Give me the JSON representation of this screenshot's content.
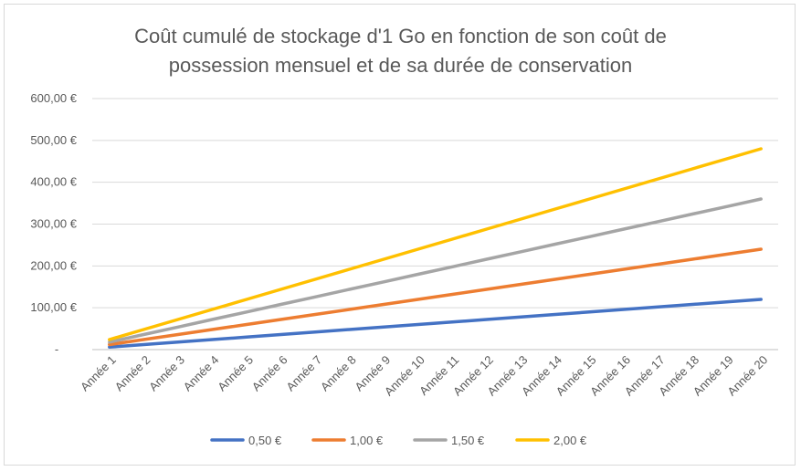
{
  "chart_data": {
    "type": "line",
    "title_line1": "Coût cumulé de stockage d'1 Go en fonction de son coût de",
    "title_line2": "possession mensuel et de sa durée de conservation",
    "categories": [
      "Année 1",
      "Année 2",
      "Année 3",
      "Année 4",
      "Année 5",
      "Année 6",
      "Année 7",
      "Année 8",
      "Année 9",
      "Année 10",
      "Année 11",
      "Année 12",
      "Année 13",
      "Année 14",
      "Année 15",
      "Année 16",
      "Année 17",
      "Année 18",
      "Année 19",
      "Année 20"
    ],
    "y_ticks": [
      "-",
      "100,00 €",
      "200,00 €",
      "300,00 €",
      "400,00 €",
      "500,00 €",
      "600,00 €"
    ],
    "ylim": [
      0,
      600
    ],
    "grid": true,
    "legend_position": "bottom",
    "series": [
      {
        "name": "0,50 €",
        "color": "#4472c4",
        "values": [
          6,
          12,
          18,
          24,
          30,
          36,
          42,
          48,
          54,
          60,
          66,
          72,
          78,
          84,
          90,
          96,
          102,
          108,
          114,
          120
        ]
      },
      {
        "name": "1,00 €",
        "color": "#ed7d31",
        "values": [
          12,
          24,
          36,
          48,
          60,
          72,
          84,
          96,
          108,
          120,
          132,
          144,
          156,
          168,
          180,
          192,
          204,
          216,
          228,
          240
        ]
      },
      {
        "name": "1,50 €",
        "color": "#a5a5a5",
        "values": [
          18,
          36,
          54,
          72,
          90,
          108,
          126,
          144,
          162,
          180,
          198,
          216,
          234,
          252,
          270,
          288,
          306,
          324,
          342,
          360
        ]
      },
      {
        "name": "2,00 €",
        "color": "#ffc000",
        "values": [
          24,
          48,
          72,
          96,
          120,
          144,
          168,
          192,
          216,
          240,
          264,
          288,
          312,
          336,
          360,
          384,
          408,
          432,
          456,
          480
        ]
      }
    ]
  }
}
